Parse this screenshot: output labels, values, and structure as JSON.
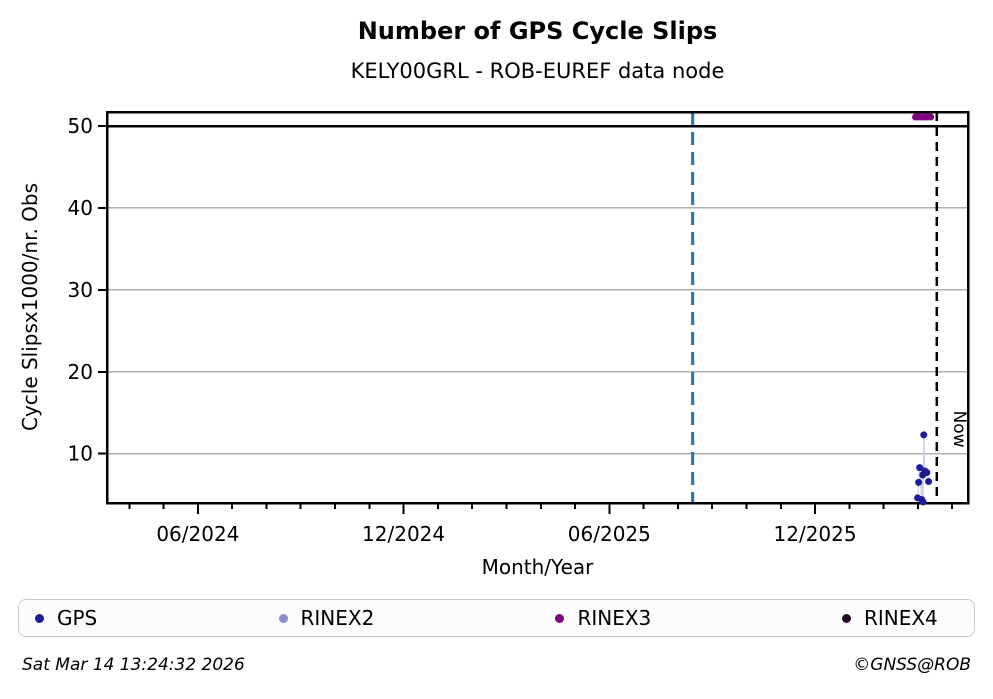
{
  "title": "Number of GPS Cycle Slips",
  "subtitle": "KELY00GRL - ROB-EUREF data node",
  "axis": {
    "xlabel": "Month/Year",
    "ylabel": "Cycle Slipsx1000/nr. Obs"
  },
  "legend": [
    {
      "label": "GPS",
      "color": "#1c1c96"
    },
    {
      "label": "RINEX2",
      "color": "#8d8dd0"
    },
    {
      "label": "RINEX3",
      "color": "#800080"
    },
    {
      "label": "RINEX4",
      "color": "#270a29"
    }
  ],
  "footer": {
    "timestamp": "Sat Mar 14 13:24:32 2026",
    "copyright": "©GNSS@ROB"
  },
  "chart_data": {
    "type": "scatter",
    "title": "Number of GPS Cycle Slips",
    "subtitle": "KELY00GRL - ROB-EUREF data node",
    "xlabel": "Month/Year",
    "ylabel": "Cycle Slipsx1000/nr. Obs",
    "x_unit": "months since 2024-06",
    "xlim": [
      -2.65,
      22.46
    ],
    "ylim": [
      3.98,
      51.71
    ],
    "grid": true,
    "grid_color": "#b0b0b0",
    "frame_color": "#000000",
    "yticks": [
      10,
      20,
      30,
      40,
      50
    ],
    "threshold_line_y": 50,
    "xticks_major": [
      {
        "m": 0,
        "label": "06/2024"
      },
      {
        "m": 6,
        "label": "12/2024"
      },
      {
        "m": 12,
        "label": "06/2025"
      },
      {
        "m": 18,
        "label": "12/2025"
      }
    ],
    "xticks_minor": {
      "start": -2,
      "end": 22,
      "step": 1
    },
    "vlines": [
      {
        "name": "reference-line",
        "m": 14.43,
        "color": "#1f77b4",
        "dash": "13,7",
        "width": 3
      },
      {
        "name": "now-line",
        "m": 21.55,
        "color": "#000000",
        "dash": "9,6",
        "width": 2.5,
        "label": "Now"
      }
    ],
    "now_label": "Now",
    "legend_position": "bottom",
    "series": [
      {
        "name": "GPS",
        "color": "#1c1c96",
        "marker_radius": 3.5,
        "connect": true,
        "line_color": "#cdcfe6",
        "points": [
          [
            20.99,
            4.6
          ],
          [
            21.02,
            6.5
          ],
          [
            21.05,
            8.3
          ],
          [
            21.11,
            4.4
          ],
          [
            21.14,
            7.4
          ],
          [
            21.15,
            4.1
          ],
          [
            21.17,
            12.3
          ],
          [
            21.2,
            7.9
          ],
          [
            21.26,
            7.7
          ],
          [
            21.31,
            6.6
          ]
        ]
      },
      {
        "name": "RINEX2",
        "color": "#8d8dd0",
        "marker_radius": 3.5,
        "connect": false,
        "points": []
      },
      {
        "name": "RINEX3",
        "color": "#800080",
        "marker_radius": 3.5,
        "connect": false,
        "points": [
          [
            20.93,
            51.1
          ],
          [
            21.02,
            51.1
          ],
          [
            21.11,
            51.1
          ],
          [
            21.2,
            51.1
          ],
          [
            21.28,
            51.1
          ],
          [
            21.37,
            51.1
          ]
        ]
      },
      {
        "name": "RINEX4",
        "color": "#270a29",
        "marker_radius": 3.5,
        "connect": false,
        "points": []
      }
    ]
  }
}
